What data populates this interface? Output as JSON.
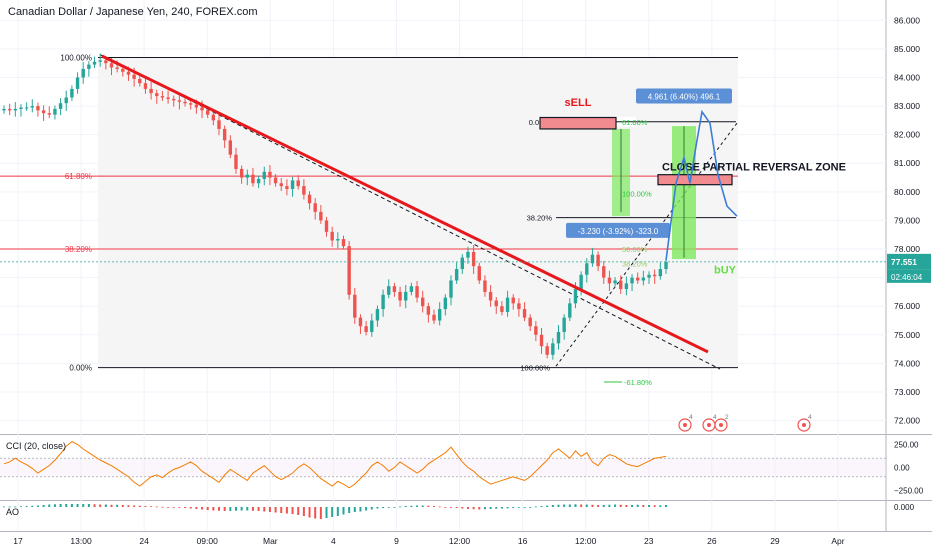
{
  "header": {
    "title": "Canadian Dollar / Japanese Yen, 240, FOREX.com"
  },
  "colors": {
    "up": "#26a69a",
    "down": "#ef5350",
    "trend": "#e8171b",
    "fib": "#f23645",
    "cci": "#f57c00",
    "blue_box": "#5b8fd6",
    "green_box": "#7ee85e",
    "last_price": "#26a69a",
    "grid": "#f0f3fa"
  },
  "chart_data": [
    {
      "type": "candlestick",
      "title": "Canadian Dollar / Japanese Yen, 240, FOREX.com",
      "x_ticks": [
        "17",
        "13:00",
        "24",
        "09:00",
        "Mar",
        "4",
        "9",
        "12:00",
        "16",
        "12:00",
        "23",
        "26",
        "29",
        "Apr"
      ],
      "y_ticks": [
        "86.000",
        "85.000",
        "84.000",
        "83.000",
        "82.000",
        "81.000",
        "80.000",
        "79.000",
        "78.000",
        "77.000",
        "76.000",
        "75.000",
        "74.000",
        "73.000",
        "72.000"
      ],
      "ylim": [
        71.6,
        86.5
      ],
      "last_price": "77.551",
      "countdown": "02:46:04",
      "fib_retracement": [
        {
          "level": "100.00%",
          "price": 84.7
        },
        {
          "level": "61.80%",
          "price": 80.55
        },
        {
          "level": "38.20%",
          "price": 78.0
        },
        {
          "level": "0.00%",
          "price": 73.85
        }
      ],
      "fib_extension_labels": [
        "0.00%",
        "61.80%",
        "100.00%",
        "38.20%",
        "50.00%",
        "38.20%",
        "100.00%",
        "-61.80%"
      ],
      "annotations": {
        "sell": "sELL",
        "buy": "bUY",
        "zone": "CLOSE PARTIAL REVERSAL ZONE",
        "measure_up": "4.961 (6.40%) 496.1",
        "measure_down": "-3.230 (-3.92%) -323.0"
      },
      "event_badges": [
        "4",
        "4",
        "2",
        "4"
      ],
      "closes": [
        82.9,
        82.85,
        82.9,
        82.95,
        82.95,
        83.0,
        82.85,
        82.75,
        82.7,
        82.9,
        83.1,
        83.3,
        83.6,
        84.0,
        84.3,
        84.45,
        84.55,
        84.6,
        84.5,
        84.35,
        84.3,
        84.2,
        84.1,
        83.95,
        83.8,
        83.6,
        83.45,
        83.35,
        83.3,
        83.25,
        83.2,
        83.15,
        83.1,
        83.05,
        82.95,
        82.85,
        82.7,
        82.5,
        82.2,
        81.8,
        81.3,
        80.8,
        80.5,
        80.6,
        80.3,
        80.45,
        80.7,
        80.5,
        80.3,
        80.2,
        80.1,
        80.4,
        80.2,
        79.9,
        79.6,
        79.3,
        79.0,
        78.6,
        78.3,
        78.35,
        78.1,
        76.4,
        75.6,
        75.3,
        75.1,
        75.5,
        75.9,
        76.4,
        76.7,
        76.5,
        76.2,
        76.5,
        76.7,
        76.3,
        76.0,
        75.7,
        75.5,
        75.9,
        76.3,
        76.9,
        77.3,
        77.7,
        77.9,
        77.4,
        76.9,
        76.5,
        76.2,
        76.0,
        75.8,
        76.3,
        76.1,
        75.9,
        75.6,
        75.3,
        75.0,
        74.6,
        74.3,
        74.7,
        75.1,
        75.6,
        76.1,
        76.6,
        77.1,
        77.5,
        77.8,
        77.4,
        77.0,
        76.8,
        76.9,
        76.6,
        76.8,
        77.0,
        76.9,
        77.0,
        77.1,
        77.05,
        77.3,
        77.55
      ]
    },
    {
      "type": "line",
      "name": "CCI (20, close)",
      "y_ticks": [
        "250.00",
        "0.00",
        "−250.00"
      ],
      "ylim": [
        -330,
        330
      ],
      "bands": [
        100,
        -100
      ],
      "values": [
        40,
        60,
        100,
        60,
        30,
        -10,
        -60,
        -20,
        20,
        80,
        150,
        230,
        280,
        250,
        200,
        160,
        120,
        80,
        50,
        20,
        -20,
        -60,
        -100,
        -160,
        -200,
        -150,
        -100,
        -80,
        -110,
        -60,
        -20,
        0,
        30,
        60,
        20,
        -40,
        -80,
        -120,
        -160,
        -80,
        -20,
        -60,
        -100,
        -140,
        -60,
        -20,
        20,
        -40,
        -100,
        -130,
        -100,
        -60,
        0,
        40,
        0,
        -60,
        -120,
        -160,
        -200,
        -150,
        -180,
        -220,
        -180,
        -120,
        -60,
        20,
        60,
        20,
        -40,
        0,
        60,
        20,
        -20,
        -60,
        -20,
        40,
        80,
        120,
        160,
        220,
        140,
        60,
        0,
        -40,
        -100,
        -140,
        -180,
        -160,
        -140,
        -120,
        -100,
        -120,
        -140,
        -100,
        -40,
        20,
        80,
        160,
        200,
        150,
        100,
        180,
        120,
        160,
        60,
        20,
        100,
        140,
        120,
        80,
        40,
        20,
        10,
        40,
        70,
        100,
        110,
        120
      ]
    },
    {
      "type": "bar",
      "name": "AO",
      "y_ticks": [
        "0.000"
      ],
      "ylim": [
        -2.6,
        1.0
      ],
      "values": [
        0.1,
        0.1,
        0.1,
        0.15,
        0.2,
        0.25,
        0.3,
        0.4,
        0.5,
        0.55,
        0.6,
        0.6,
        0.6,
        0.6,
        0.6,
        0.6,
        0.55,
        0.5,
        0.5,
        0.45,
        0.45,
        0.4,
        0.35,
        0.3,
        0.25,
        0.2,
        0.15,
        0.1,
        0.05,
        0.0,
        -0.05,
        -0.1,
        -0.2,
        -0.3,
        -0.4,
        -0.5,
        -0.6,
        -0.7,
        -0.75,
        -0.8,
        -0.8,
        -0.75,
        -0.7,
        -0.7,
        -0.75,
        -0.8,
        -0.9,
        -1.0,
        -1.1,
        -1.2,
        -1.3,
        -1.4,
        -1.6,
        -1.8,
        -2.1,
        -2.3,
        -2.4,
        -2.2,
        -2.0,
        -1.8,
        -1.5,
        -1.2,
        -1.0,
        -0.9,
        -0.7,
        -0.5,
        -0.3,
        -0.2,
        -0.1,
        0.0,
        0.1,
        0.2,
        0.25,
        0.3,
        0.3,
        0.25,
        0.2,
        0.1,
        0.0,
        -0.1,
        -0.2,
        -0.3,
        -0.4,
        -0.45,
        -0.5,
        -0.45,
        -0.4,
        -0.35,
        -0.3,
        -0.25,
        -0.2,
        -0.15,
        -0.1,
        0.0,
        0.1,
        0.2,
        0.3,
        0.4,
        0.45,
        0.5,
        0.5,
        0.55,
        0.5,
        0.5,
        0.45,
        0.4,
        0.4,
        0.45,
        0.5,
        0.45,
        0.4,
        0.4,
        0.45,
        0.4,
        0.4,
        0.35,
        0.35,
        0.4
      ]
    }
  ]
}
